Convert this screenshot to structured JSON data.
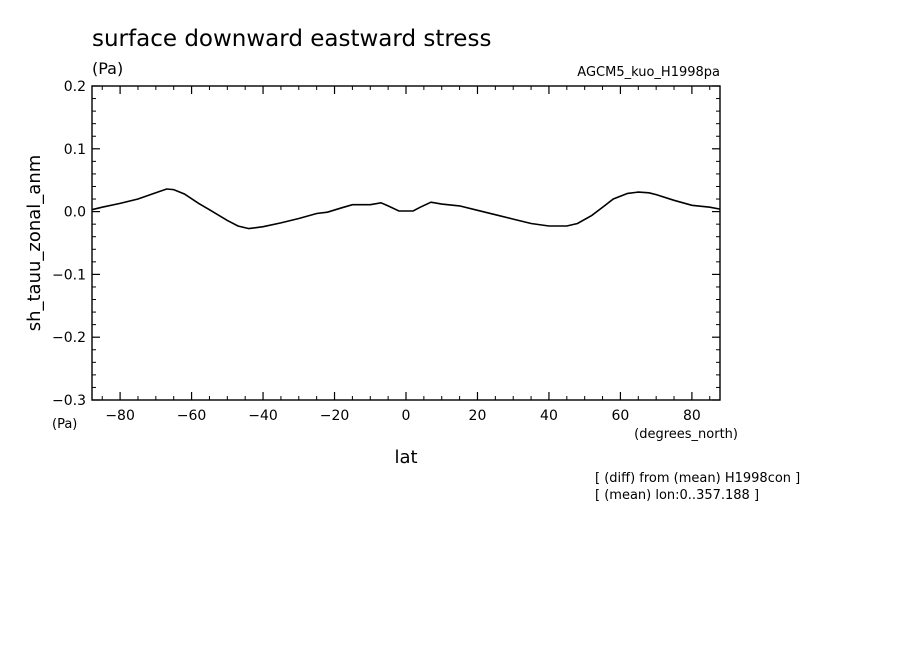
{
  "chart_data": {
    "type": "line",
    "title": "surface downward eastward stress",
    "units": "(Pa)",
    "run_label": "AGCM5_kuo_H1998pa",
    "xlabel": "lat",
    "xunits": "(degrees_north)",
    "ylabel": "sh_tauu_zonal_anm",
    "yunits": "(Pa)",
    "xlim": [
      -87.8638,
      87.8638
    ],
    "ylim": [
      -0.3,
      0.2
    ],
    "xticks": [
      -80,
      -60,
      -40,
      -20,
      0,
      20,
      40,
      60,
      80
    ],
    "xtick_labels": [
      "−80",
      "−60",
      "−40",
      "−20",
      "0",
      "20",
      "40",
      "60",
      "80"
    ],
    "yticks": [
      0.2,
      0.1,
      0.0,
      -0.1,
      -0.2,
      -0.3
    ],
    "ytick_labels": [
      "0.2",
      "0.1",
      "0.0",
      "−0.1",
      "−0.2",
      "−0.3"
    ],
    "grid": false,
    "notes": [
      "[ (diff) from (mean) H1998con ]",
      "[ (mean) lon:0..357.188 ]"
    ],
    "series": [
      {
        "x": [
          -87.9,
          -85,
          -80,
          -75,
          -70,
          -67,
          -65,
          -62,
          -58,
          -55,
          -50,
          -47,
          -44,
          -40,
          -35,
          -30,
          -25,
          -22,
          -18,
          -15,
          -10,
          -7,
          -5,
          -2,
          0,
          2,
          4,
          7,
          10,
          15,
          20,
          25,
          30,
          35,
          40,
          45,
          48,
          52,
          55,
          58,
          62,
          65,
          68,
          70,
          75,
          80,
          85,
          87.9
        ],
        "y": [
          0.003,
          0.007,
          0.013,
          0.02,
          0.03,
          0.036,
          0.035,
          0.028,
          0.013,
          0.003,
          -0.014,
          -0.023,
          -0.027,
          -0.024,
          -0.018,
          -0.011,
          -0.003,
          -0.001,
          0.006,
          0.011,
          0.011,
          0.014,
          0.009,
          0.001,
          0.001,
          0.001,
          0.007,
          0.015,
          0.012,
          0.009,
          0.002,
          -0.005,
          -0.012,
          -0.019,
          -0.023,
          -0.023,
          -0.019,
          -0.006,
          0.007,
          0.02,
          0.029,
          0.031,
          0.03,
          0.027,
          0.018,
          0.01,
          0.007,
          0.004
        ]
      }
    ]
  }
}
